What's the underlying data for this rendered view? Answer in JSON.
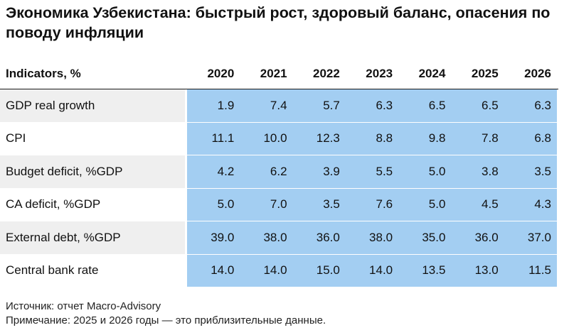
{
  "title": "Экономика Узбекистана: быстрый рост, здоровый баланс, опасения по поводу инфляции",
  "table": {
    "header_label": "Indicators, %",
    "years": [
      "2020",
      "2021",
      "2022",
      "2023",
      "2024",
      "2025",
      "2026"
    ],
    "rows": [
      {
        "label": "GDP real growth",
        "values": [
          "1.9",
          "7.4",
          "5.7",
          "6.3",
          "6.5",
          "6.5",
          "6.3"
        ]
      },
      {
        "label": "CPI",
        "values": [
          "11.1",
          "10.0",
          "12.3",
          "8.8",
          "9.8",
          "7.8",
          "6.8"
        ]
      },
      {
        "label": "Budget deficit, %GDP",
        "values": [
          "4.2",
          "6.2",
          "3.9",
          "5.5",
          "5.0",
          "3.8",
          "3.5"
        ]
      },
      {
        "label": "CA deficit, %GDP",
        "values": [
          "5.0",
          "7.0",
          "3.5",
          "7.6",
          "5.0",
          "4.5",
          "4.3"
        ]
      },
      {
        "label": "External debt, %GDP",
        "values": [
          "39.0",
          "38.0",
          "36.0",
          "38.0",
          "35.0",
          "36.0",
          "37.0"
        ]
      },
      {
        "label": "Central bank rate",
        "values": [
          "14.0",
          "14.0",
          "15.0",
          "14.0",
          "13.5",
          "13.0",
          "11.5"
        ]
      }
    ]
  },
  "footer": {
    "source": "Источник: отчет Macro-Advisory",
    "note": "Примечание: 2025 и 2026 годы — это приблизительные данные."
  },
  "colors": {
    "value_bg": "#a3cef2",
    "label_bg_shaded": "#efefef",
    "rule": "#1a1a1a"
  }
}
